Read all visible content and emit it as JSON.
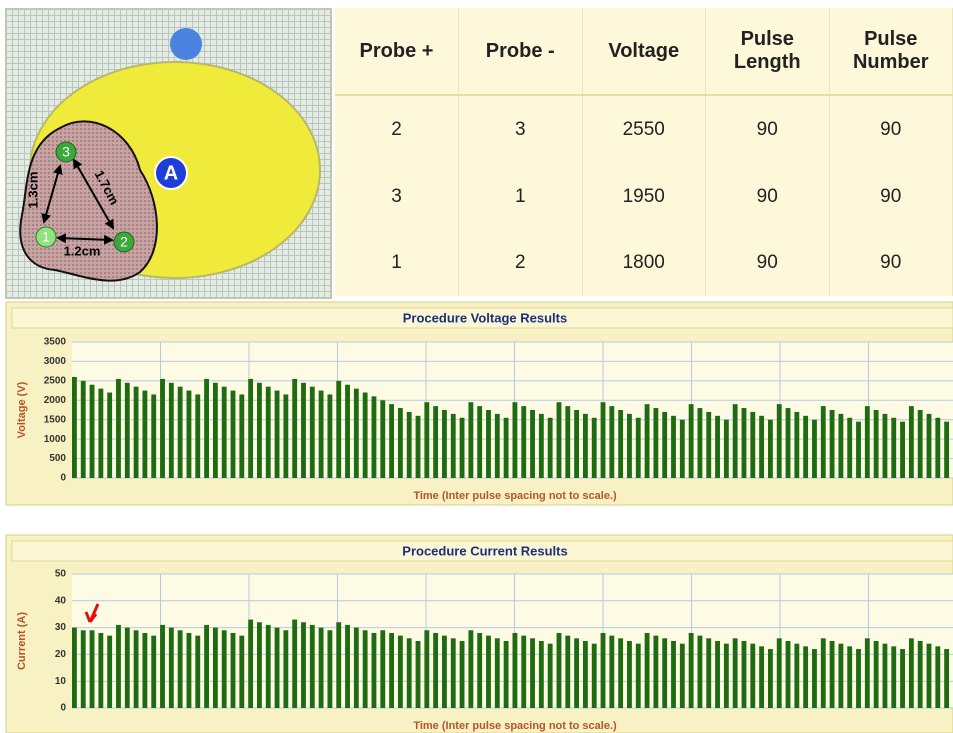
{
  "diagram": {
    "zone_label": "A",
    "probes": [
      "1",
      "2",
      "3"
    ],
    "distances": [
      "1.3cm",
      "1.7cm",
      "1.2cm"
    ]
  },
  "table": {
    "header": [
      "Probe +",
      "Probe -",
      "Voltage",
      "Pulse Length",
      "Pulse Number"
    ],
    "rows": [
      [
        2,
        3,
        2550,
        90,
        90
      ],
      [
        3,
        1,
        1950,
        90,
        90
      ],
      [
        1,
        2,
        1800,
        90,
        90
      ]
    ]
  },
  "chart_data": [
    {
      "type": "bar",
      "title": "Procedure Voltage Results",
      "y_label": "Voltage (V)",
      "x_label": "Time (Inter pulse spacing not to scale.)",
      "color": "#1e6b12",
      "ylim": [
        0,
        3500
      ],
      "yticks": [
        0,
        500,
        1000,
        1500,
        2000,
        2500,
        3000,
        3500
      ],
      "grid": true,
      "values": [
        2600,
        2500,
        2400,
        2300,
        2200,
        2550,
        2450,
        2350,
        2250,
        2150,
        2550,
        2450,
        2350,
        2250,
        2150,
        2550,
        2450,
        2350,
        2250,
        2150,
        2550,
        2450,
        2350,
        2250,
        2150,
        2550,
        2450,
        2350,
        2250,
        2150,
        2500,
        2400,
        2300,
        2200,
        2100,
        2000,
        1900,
        1800,
        1700,
        1600,
        1950,
        1850,
        1750,
        1650,
        1550,
        1950,
        1850,
        1750,
        1650,
        1550,
        1950,
        1850,
        1750,
        1650,
        1550,
        1950,
        1850,
        1750,
        1650,
        1550,
        1950,
        1850,
        1750,
        1650,
        1550,
        1900,
        1800,
        1700,
        1600,
        1500,
        1900,
        1800,
        1700,
        1600,
        1500,
        1900,
        1800,
        1700,
        1600,
        1500,
        1900,
        1800,
        1700,
        1600,
        1500,
        1850,
        1750,
        1650,
        1550,
        1450,
        1850,
        1750,
        1650,
        1550,
        1450,
        1850,
        1750,
        1650,
        1550,
        1450
      ]
    },
    {
      "type": "bar",
      "title": "Procedure Current Results",
      "y_label": "Current (A)",
      "x_label": "Time (Inter pulse spacing not to scale.)",
      "color": "#1e6b12",
      "ylim": [
        0,
        50
      ],
      "yticks": [
        0,
        10,
        20,
        30,
        40,
        50
      ],
      "grid": true,
      "values": [
        30,
        29,
        29,
        28,
        27,
        31,
        30,
        29,
        28,
        27,
        31,
        30,
        29,
        28,
        27,
        31,
        30,
        29,
        28,
        27,
        33,
        32,
        31,
        30,
        29,
        33,
        32,
        31,
        30,
        29,
        32,
        31,
        30,
        29,
        28,
        29,
        28,
        27,
        26,
        25,
        29,
        28,
        27,
        26,
        25,
        29,
        28,
        27,
        26,
        25,
        28,
        27,
        26,
        25,
        24,
        28,
        27,
        26,
        25,
        24,
        28,
        27,
        26,
        25,
        24,
        28,
        27,
        26,
        25,
        24,
        28,
        27,
        26,
        25,
        24,
        26,
        25,
        24,
        23,
        22,
        26,
        25,
        24,
        23,
        22,
        26,
        25,
        24,
        23,
        22,
        26,
        25,
        24,
        23,
        22,
        26,
        25,
        24,
        23,
        22
      ]
    }
  ]
}
